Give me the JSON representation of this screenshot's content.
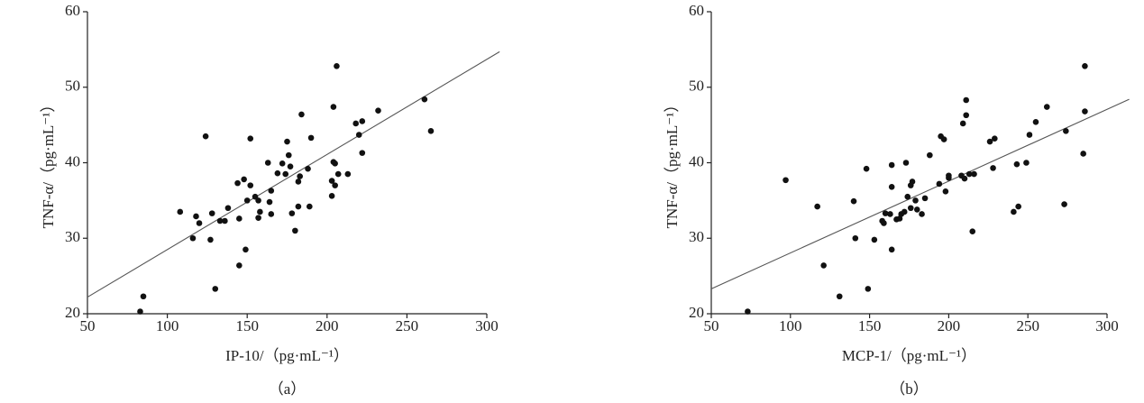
{
  "chart_data": [
    {
      "type": "scatter",
      "caption": "（a）",
      "xlabel": "IP-10/（pg·mL⁻¹）",
      "ylabel": "TNF-α/（pg·mL⁻¹）",
      "xlim": [
        50,
        300
      ],
      "ylim": [
        20,
        60
      ],
      "xticks": [
        50,
        100,
        150,
        200,
        250,
        300
      ],
      "yticks": [
        20,
        30,
        40,
        50,
        60
      ],
      "color": "#111111",
      "x": [
        83,
        85,
        108,
        116,
        118,
        120,
        124,
        127,
        128,
        130,
        133,
        136,
        138,
        144,
        145,
        145,
        148,
        149,
        150,
        152,
        152,
        155,
        157,
        157,
        158,
        163,
        164,
        165,
        165,
        169,
        172,
        174,
        175,
        176,
        177,
        178,
        180,
        182,
        182,
        183,
        184,
        188,
        189,
        190,
        203,
        203,
        204,
        204,
        205,
        205,
        206,
        207,
        213,
        218,
        220,
        222,
        222,
        232,
        261,
        265
      ],
      "y": [
        20.3,
        22.3,
        33.5,
        30,
        32.9,
        32,
        43.5,
        29.8,
        33.3,
        23.3,
        32.3,
        32.3,
        34,
        37.3,
        32.6,
        26.4,
        37.8,
        28.5,
        35,
        43.2,
        37,
        35.5,
        32.7,
        35,
        33.5,
        40,
        34.8,
        33.2,
        36.3,
        38.6,
        39.9,
        38.5,
        42.8,
        41,
        39.5,
        33.3,
        31,
        37.5,
        34.2,
        38.2,
        46.4,
        39.2,
        34.2,
        43.3,
        35.6,
        37.6,
        40.1,
        47.4,
        37,
        39.9,
        52.8,
        38.5,
        38.5,
        45.2,
        43.7,
        45.5,
        41.3,
        46.9,
        48.4,
        44.2
      ],
      "trendline": {
        "x": [
          50,
          308
        ],
        "y": [
          22.2,
          54.7
        ]
      }
    },
    {
      "type": "scatter",
      "caption": "（b）",
      "xlabel": "MCP-1/（pg·mL⁻¹）",
      "ylabel": "TNF-α/（pg·mL⁻¹）",
      "xlim": [
        50,
        300
      ],
      "ylim": [
        20,
        60
      ],
      "xticks": [
        50,
        100,
        150,
        200,
        250,
        300
      ],
      "yticks": [
        20,
        30,
        40,
        50,
        60
      ],
      "color": "#111111",
      "x": [
        73,
        97,
        117,
        121,
        131,
        140,
        141,
        148,
        149,
        153,
        158,
        159,
        160,
        163,
        164,
        164,
        164,
        167,
        169,
        170,
        172,
        173,
        174,
        176,
        176,
        177,
        179,
        180,
        183,
        185,
        188,
        194,
        195,
        197,
        198,
        200,
        200,
        208,
        209,
        210,
        211,
        211,
        213,
        215,
        216,
        226,
        228,
        229,
        241,
        243,
        244,
        249,
        251,
        255,
        262,
        273,
        274,
        285,
        286,
        286
      ],
      "y": [
        20.3,
        37.7,
        34.2,
        26.4,
        22.3,
        34.9,
        30,
        39.2,
        23.3,
        29.8,
        32.3,
        32,
        33.3,
        33.2,
        39.7,
        36.8,
        28.5,
        32.5,
        32.6,
        33.2,
        33.5,
        40,
        35.5,
        37,
        34,
        37.5,
        35,
        33.8,
        33.2,
        35.3,
        41,
        37.2,
        43.5,
        43.1,
        36.2,
        38,
        38.3,
        38.3,
        45.2,
        37.9,
        48.3,
        46.3,
        38.5,
        30.9,
        38.5,
        42.8,
        39.3,
        43.2,
        33.5,
        39.8,
        34.2,
        40,
        43.7,
        45.4,
        47.4,
        34.5,
        44.2,
        41.2,
        46.8,
        52.8
      ],
      "trendline": {
        "x": [
          50,
          314
        ],
        "y": [
          23.3,
          48.4
        ]
      }
    }
  ]
}
